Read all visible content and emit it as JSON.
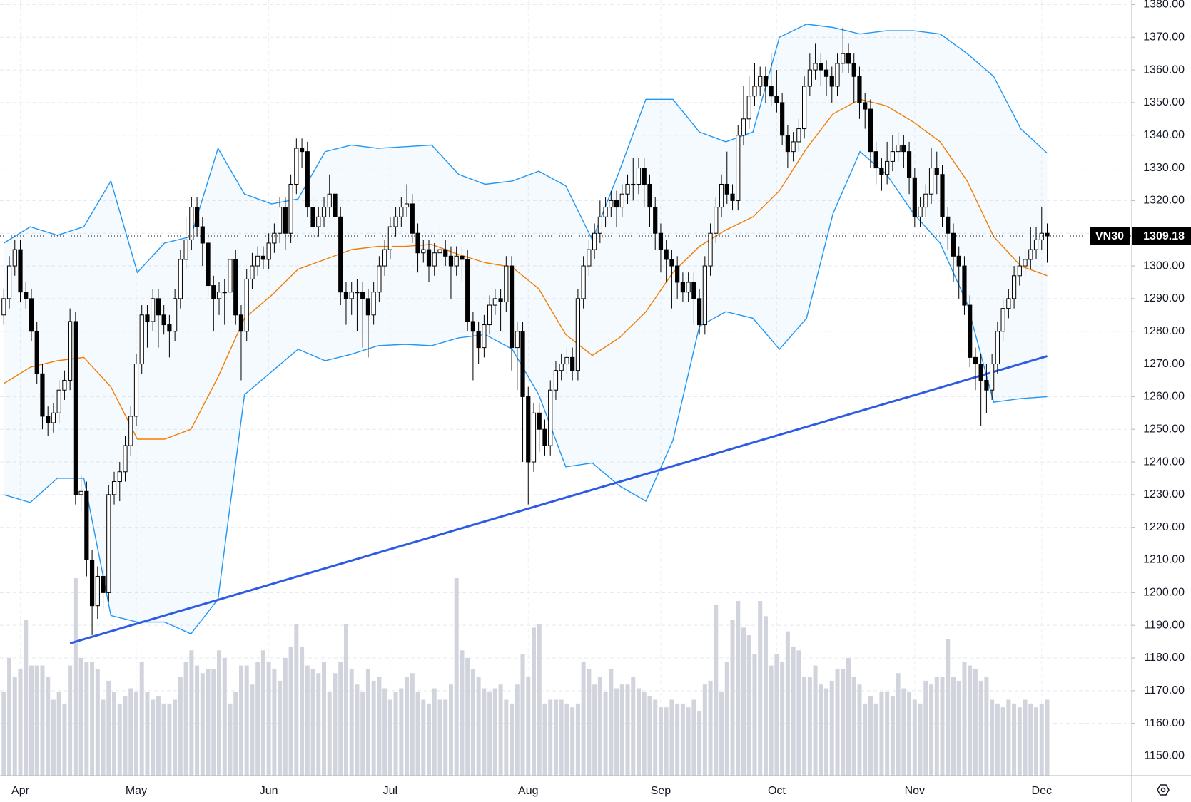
{
  "chart_data": {
    "type": "candlestick",
    "symbol": "VN30",
    "categories": [
      null,
      null,
      null,
      "Apr",
      null,
      null,
      null,
      null,
      null,
      null,
      null,
      null,
      null,
      null,
      null,
      null,
      null,
      null,
      null,
      null,
      null,
      null,
      null,
      null,
      "May",
      null,
      null,
      null,
      null,
      null,
      null,
      null,
      null,
      null,
      null,
      null,
      null,
      null,
      null,
      null,
      null,
      null,
      null,
      null,
      null,
      null,
      null,
      null,
      "Jun",
      null,
      null,
      null,
      null,
      null,
      null,
      null,
      null,
      null,
      null,
      null,
      null,
      null,
      null,
      null,
      null,
      null,
      null,
      null,
      null,
      null,
      "Jul",
      null,
      null,
      null,
      null,
      null,
      null,
      null,
      null,
      null,
      null,
      null,
      null,
      null,
      null,
      null,
      null,
      null,
      null,
      null,
      null,
      null,
      null,
      null,
      null,
      "Aug",
      null,
      null,
      null,
      null,
      null,
      null,
      null,
      null,
      null,
      null,
      null,
      null,
      null,
      null,
      null,
      null,
      null,
      null,
      null,
      null,
      null,
      null,
      null,
      "Sep",
      null,
      null,
      null,
      null,
      null,
      null,
      null,
      null,
      null,
      null,
      null,
      null,
      null,
      null,
      null,
      null,
      null,
      null,
      null,
      null,
      "Oct",
      null,
      null,
      null,
      null,
      null,
      null,
      null,
      null,
      null,
      null,
      null,
      null,
      null,
      null,
      null,
      null,
      null,
      null,
      null,
      null,
      null,
      null,
      null,
      null,
      "Nov",
      null,
      null,
      null,
      null,
      null,
      null,
      null,
      null,
      null,
      null,
      null,
      null,
      null,
      null,
      null,
      null,
      null,
      null,
      null,
      null,
      null,
      null,
      "Dec",
      null
    ],
    "open": [
      1285,
      1290,
      1300,
      1305,
      1292,
      1290,
      1280,
      1267,
      1254,
      1252,
      1255,
      1262,
      1265,
      1283,
      1230,
      1231,
      1210,
      1196,
      1205,
      1200,
      1230,
      1234,
      1237,
      1245,
      1254,
      1270,
      1285,
      1283,
      1290,
      1285,
      1282,
      1280,
      1290,
      1302,
      1308,
      1318,
      1312,
      1307,
      1294,
      1290,
      1292,
      1292,
      1302,
      1285,
      1280,
      1296,
      1300,
      1303,
      1302,
      1307,
      1310,
      1318,
      1310,
      1325,
      1336,
      1335,
      1318,
      1312,
      1315,
      1318,
      1322,
      1315,
      1292,
      1290,
      1292,
      1292,
      1290,
      1285,
      1292,
      1300,
      1305,
      1312,
      1315,
      1318,
      1319,
      1310,
      1304,
      1305,
      1300,
      1304,
      1305,
      1303,
      1300,
      1303,
      1302,
      1283,
      1280,
      1275,
      1282,
      1288,
      1290,
      1289,
      1300,
      1275,
      1280,
      1260,
      1240,
      1255,
      1250,
      1245,
      1262,
      1268,
      1270,
      1272,
      1268,
      1290,
      1300,
      1305,
      1310,
      1315,
      1318,
      1320,
      1318,
      1322,
      1325,
      1325,
      1330,
      1325,
      1318,
      1310,
      1305,
      1302,
      1300,
      1295,
      1292,
      1295,
      1290,
      1282,
      1300,
      1310,
      1318,
      1325,
      1322,
      1320,
      1340,
      1345,
      1352,
      1355,
      1358,
      1355,
      1352,
      1350,
      1340,
      1335,
      1338,
      1342,
      1355,
      1360,
      1362,
      1360,
      1358,
      1355,
      1362,
      1365,
      1362,
      1358,
      1350,
      1348,
      1335,
      1330,
      1328,
      1332,
      1335,
      1337,
      1335,
      1327,
      1315,
      1318,
      1322,
      1330,
      1328,
      1315,
      1310,
      1303,
      1300,
      1288,
      1272,
      1270,
      1265,
      1262,
      1270,
      1280,
      1287,
      1290,
      1297,
      1300,
      1302,
      1305,
      1308,
      1310
    ],
    "high": [
      1293,
      1303,
      1308,
      1308,
      1295,
      1293,
      1283,
      1270,
      1257,
      1258,
      1265,
      1268,
      1287,
      1286,
      1236,
      1234,
      1213,
      1208,
      1208,
      1233,
      1237,
      1240,
      1248,
      1257,
      1273,
      1288,
      1288,
      1293,
      1293,
      1288,
      1285,
      1293,
      1305,
      1315,
      1321,
      1321,
      1315,
      1310,
      1297,
      1295,
      1296,
      1305,
      1305,
      1288,
      1299,
      1304,
      1306,
      1306,
      1310,
      1313,
      1321,
      1321,
      1328,
      1339,
      1339,
      1338,
      1321,
      1318,
      1321,
      1328,
      1325,
      1318,
      1295,
      1295,
      1296,
      1295,
      1293,
      1295,
      1303,
      1308,
      1315,
      1318,
      1321,
      1325,
      1322,
      1313,
      1308,
      1308,
      1307,
      1312,
      1308,
      1306,
      1306,
      1306,
      1305,
      1286,
      1283,
      1285,
      1291,
      1293,
      1293,
      1303,
      1303,
      1283,
      1283,
      1263,
      1258,
      1258,
      1253,
      1265,
      1271,
      1273,
      1275,
      1275,
      1293,
      1303,
      1308,
      1313,
      1320,
      1321,
      1323,
      1323,
      1325,
      1328,
      1333,
      1333,
      1333,
      1328,
      1321,
      1313,
      1308,
      1305,
      1303,
      1298,
      1298,
      1298,
      1293,
      1303,
      1313,
      1321,
      1328,
      1335,
      1325,
      1343,
      1355,
      1358,
      1362,
      1361,
      1361,
      1365,
      1360,
      1353,
      1343,
      1341,
      1345,
      1358,
      1365,
      1368,
      1365,
      1363,
      1361,
      1365,
      1373,
      1368,
      1365,
      1361,
      1353,
      1351,
      1338,
      1333,
      1338,
      1340,
      1341,
      1340,
      1338,
      1330,
      1321,
      1325,
      1336,
      1335,
      1331,
      1318,
      1313,
      1306,
      1303,
      1291,
      1275,
      1273,
      1270,
      1273,
      1283,
      1290,
      1293,
      1300,
      1303,
      1305,
      1312,
      1312,
      1318,
      1313
    ],
    "low": [
      1282,
      1287,
      1297,
      1289,
      1287,
      1277,
      1264,
      1250,
      1248,
      1249,
      1252,
      1259,
      1262,
      1227,
      1225,
      1205,
      1187,
      1192,
      1195,
      1197,
      1227,
      1228,
      1234,
      1242,
      1251,
      1267,
      1275,
      1280,
      1275,
      1279,
      1272,
      1277,
      1287,
      1299,
      1305,
      1309,
      1300,
      1291,
      1280,
      1285,
      1282,
      1289,
      1282,
      1265,
      1277,
      1293,
      1297,
      1299,
      1299,
      1304,
      1307,
      1305,
      1307,
      1322,
      1330,
      1315,
      1309,
      1309,
      1312,
      1315,
      1312,
      1288,
      1282,
      1285,
      1280,
      1275,
      1272,
      1282,
      1289,
      1297,
      1302,
      1309,
      1312,
      1315,
      1307,
      1298,
      1301,
      1295,
      1297,
      1301,
      1300,
      1290,
      1297,
      1295,
      1280,
      1265,
      1270,
      1272,
      1279,
      1285,
      1280,
      1286,
      1268,
      1262,
      1240,
      1227,
      1237,
      1243,
      1242,
      1242,
      1259,
      1265,
      1267,
      1265,
      1265,
      1287,
      1297,
      1302,
      1307,
      1312,
      1315,
      1312,
      1315,
      1319,
      1320,
      1322,
      1318,
      1312,
      1305,
      1298,
      1295,
      1287,
      1290,
      1289,
      1289,
      1282,
      1279,
      1279,
      1297,
      1307,
      1315,
      1319,
      1317,
      1317,
      1337,
      1342,
      1349,
      1352,
      1350,
      1349,
      1347,
      1337,
      1330,
      1332,
      1335,
      1339,
      1352,
      1357,
      1355,
      1352,
      1350,
      1352,
      1359,
      1359,
      1350,
      1345,
      1342,
      1330,
      1325,
      1323,
      1325,
      1329,
      1332,
      1330,
      1322,
      1312,
      1312,
      1315,
      1319,
      1322,
      1312,
      1305,
      1295,
      1290,
      1285,
      1269,
      1262,
      1251,
      1255,
      1259,
      1267,
      1277,
      1284,
      1287,
      1294,
      1297,
      1299,
      1302,
      1305,
      1301
    ],
    "close": [
      1290,
      1300,
      1305,
      1292,
      1290,
      1280,
      1267,
      1254,
      1252,
      1255,
      1262,
      1265,
      1283,
      1230,
      1231,
      1210,
      1196,
      1205,
      1200,
      1230,
      1234,
      1237,
      1245,
      1254,
      1270,
      1285,
      1283,
      1290,
      1285,
      1282,
      1280,
      1290,
      1302,
      1308,
      1318,
      1312,
      1307,
      1294,
      1290,
      1292,
      1292,
      1302,
      1285,
      1280,
      1296,
      1300,
      1303,
      1302,
      1307,
      1310,
      1318,
      1310,
      1325,
      1336,
      1335,
      1318,
      1312,
      1315,
      1318,
      1322,
      1315,
      1292,
      1290,
      1292,
      1292,
      1290,
      1285,
      1292,
      1300,
      1305,
      1312,
      1315,
      1318,
      1319,
      1310,
      1304,
      1305,
      1300,
      1304,
      1305,
      1303,
      1300,
      1303,
      1302,
      1283,
      1280,
      1275,
      1282,
      1288,
      1290,
      1289,
      1300,
      1275,
      1280,
      1260,
      1240,
      1255,
      1250,
      1245,
      1262,
      1268,
      1270,
      1272,
      1268,
      1290,
      1300,
      1305,
      1310,
      1315,
      1318,
      1320,
      1318,
      1322,
      1325,
      1325,
      1330,
      1325,
      1318,
      1310,
      1305,
      1302,
      1300,
      1295,
      1292,
      1295,
      1290,
      1282,
      1300,
      1310,
      1318,
      1325,
      1322,
      1320,
      1340,
      1345,
      1352,
      1355,
      1358,
      1355,
      1352,
      1350,
      1340,
      1335,
      1338,
      1342,
      1355,
      1360,
      1362,
      1360,
      1358,
      1355,
      1362,
      1365,
      1362,
      1358,
      1350,
      1348,
      1335,
      1330,
      1328,
      1332,
      1335,
      1337,
      1335,
      1327,
      1315,
      1318,
      1322,
      1330,
      1328,
      1315,
      1310,
      1303,
      1300,
      1288,
      1272,
      1270,
      1265,
      1262,
      1270,
      1280,
      1287,
      1290,
      1297,
      1300,
      1302,
      1305,
      1308,
      1310,
      1309.18
    ],
    "up_color": "#ffffff",
    "down_color": "#000000",
    "volume": {
      "color": "#d1d4dc",
      "values": [
        110,
        155,
        130,
        140,
        205,
        145,
        145,
        145,
        130,
        100,
        110,
        95,
        145,
        260,
        155,
        150,
        150,
        140,
        100,
        125,
        110,
        95,
        105,
        115,
        110,
        150,
        110,
        100,
        105,
        95,
        95,
        100,
        130,
        150,
        165,
        145,
        135,
        140,
        140,
        165,
        155,
        95,
        110,
        145,
        145,
        120,
        150,
        165,
        150,
        140,
        125,
        155,
        170,
        200,
        170,
        145,
        140,
        135,
        150,
        110,
        135,
        150,
        200,
        140,
        120,
        110,
        140,
        125,
        130,
        115,
        100,
        110,
        115,
        130,
        135,
        110,
        100,
        95,
        115,
        100,
        100,
        120,
        260,
        165,
        155,
        140,
        130,
        115,
        110,
        115,
        120,
        100,
        95,
        120,
        160,
        130,
        195,
        200,
        95,
        100,
        100,
        100,
        95,
        90,
        95,
        150,
        140,
        120,
        130,
        110,
        140,
        115,
        120,
        120,
        130,
        115,
        110,
        105,
        100,
        90,
        90,
        100,
        95,
        95,
        90,
        100,
        85,
        120,
        125,
        225,
        110,
        150,
        205,
        230,
        195,
        185,
        160,
        230,
        210,
        145,
        160,
        150,
        190,
        170,
        165,
        130,
        130,
        145,
        120,
        115,
        125,
        140,
        140,
        155,
        130,
        120,
        95,
        105,
        95,
        110,
        110,
        105,
        135,
        115,
        110,
        100,
        95,
        125,
        120,
        130,
        130,
        180,
        130,
        125,
        150,
        145,
        140,
        125,
        130,
        100,
        95,
        90,
        100,
        95,
        90,
        100,
        95,
        90,
        95,
        100
      ]
    },
    "bands": {
      "x": [
        0,
        4.8,
        9.7,
        14.5,
        19.4,
        24.2,
        29.1,
        33.9,
        38.8,
        43.6,
        48.5,
        53.3,
        58.2,
        63,
        67.8,
        72.7,
        77.5,
        82.4,
        87.2,
        92.1,
        96.9,
        101.8,
        106.6,
        111.5,
        116.3,
        121.2,
        126,
        130.8,
        135.7,
        140.5,
        145.4,
        150.2,
        155.1,
        159.9,
        164.8,
        169.6,
        174.5,
        179.3,
        184.2,
        189
      ],
      "upper": [
        1307,
        1312,
        1309.4,
        1312,
        1326,
        1298,
        1307,
        1309,
        1336,
        1322,
        1319,
        1320.5,
        1335,
        1337,
        1336,
        1336.5,
        1337,
        1328,
        1325,
        1326,
        1329,
        1324.5,
        1308,
        1329,
        1351,
        1351,
        1341,
        1338,
        1341,
        1370,
        1374,
        1373,
        1371,
        1372,
        1372,
        1371,
        1365,
        1358,
        1342,
        1334.5
      ],
      "middle": [
        1264,
        1269,
        1271,
        1272,
        1263,
        1247,
        1247,
        1250,
        1266,
        1284,
        1291,
        1299,
        1302,
        1305,
        1306,
        1306,
        1306.6,
        1303.5,
        1301,
        1299.6,
        1293,
        1279,
        1272.6,
        1278,
        1286,
        1298,
        1306,
        1311,
        1315,
        1323,
        1336,
        1346.5,
        1351,
        1349,
        1344,
        1338,
        1326,
        1309,
        1300,
        1297
      ],
      "lower": [
        1230,
        1227.6,
        1235,
        1235,
        1193,
        1191,
        1191,
        1187.4,
        1198,
        1260.6,
        1267.6,
        1274.5,
        1271,
        1273,
        1275.6,
        1276,
        1275.6,
        1278,
        1279,
        1274.5,
        1260.6,
        1238.5,
        1239.7,
        1232.7,
        1228,
        1246.6,
        1281.5,
        1286,
        1284,
        1274.5,
        1284,
        1316,
        1335,
        1328,
        1316,
        1307,
        1288.5,
        1258.3,
        1259.4,
        1260
      ],
      "band_color": "#2196f3",
      "fill_color": "#2196f3",
      "middle_color": "#f57c00"
    },
    "trendline": {
      "x": [
        12,
        189
      ],
      "values": [
        1184.5,
        1272.4
      ],
      "color": "#2f5be3"
    },
    "ylim": [
      1144,
      1381.4
    ],
    "yticks": [
      {
        "value": 1150,
        "label": "1150.00"
      },
      {
        "value": 1160,
        "label": "1160.00"
      },
      {
        "value": 1170,
        "label": "1170.00"
      },
      {
        "value": 1180,
        "label": "1180.00"
      },
      {
        "value": 1190,
        "label": "1190.00"
      },
      {
        "value": 1200,
        "label": "1200.00"
      },
      {
        "value": 1210,
        "label": "1210.00"
      },
      {
        "value": 1220,
        "label": "1220.00"
      },
      {
        "value": 1230,
        "label": "1230.00"
      },
      {
        "value": 1240,
        "label": "1240.00"
      },
      {
        "value": 1250,
        "label": "1250.00"
      },
      {
        "value": 1260,
        "label": "1260.00"
      },
      {
        "value": 1270,
        "label": "1270.00"
      },
      {
        "value": 1280,
        "label": "1280.00"
      },
      {
        "value": 1290,
        "label": "1290.00"
      },
      {
        "value": 1300,
        "label": "1300.00"
      },
      {
        "value": 1310,
        "label": "1310.00"
      },
      {
        "value": 1320,
        "label": "1320.00"
      },
      {
        "value": 1330,
        "label": "1330.00"
      },
      {
        "value": 1340,
        "label": "1340.00"
      },
      {
        "value": 1350,
        "label": "1350.00"
      },
      {
        "value": 1360,
        "label": "1360.00"
      },
      {
        "value": 1370,
        "label": "1370.00"
      },
      {
        "value": 1380,
        "label": "1380.00"
      }
    ],
    "grid": true
  }
}
